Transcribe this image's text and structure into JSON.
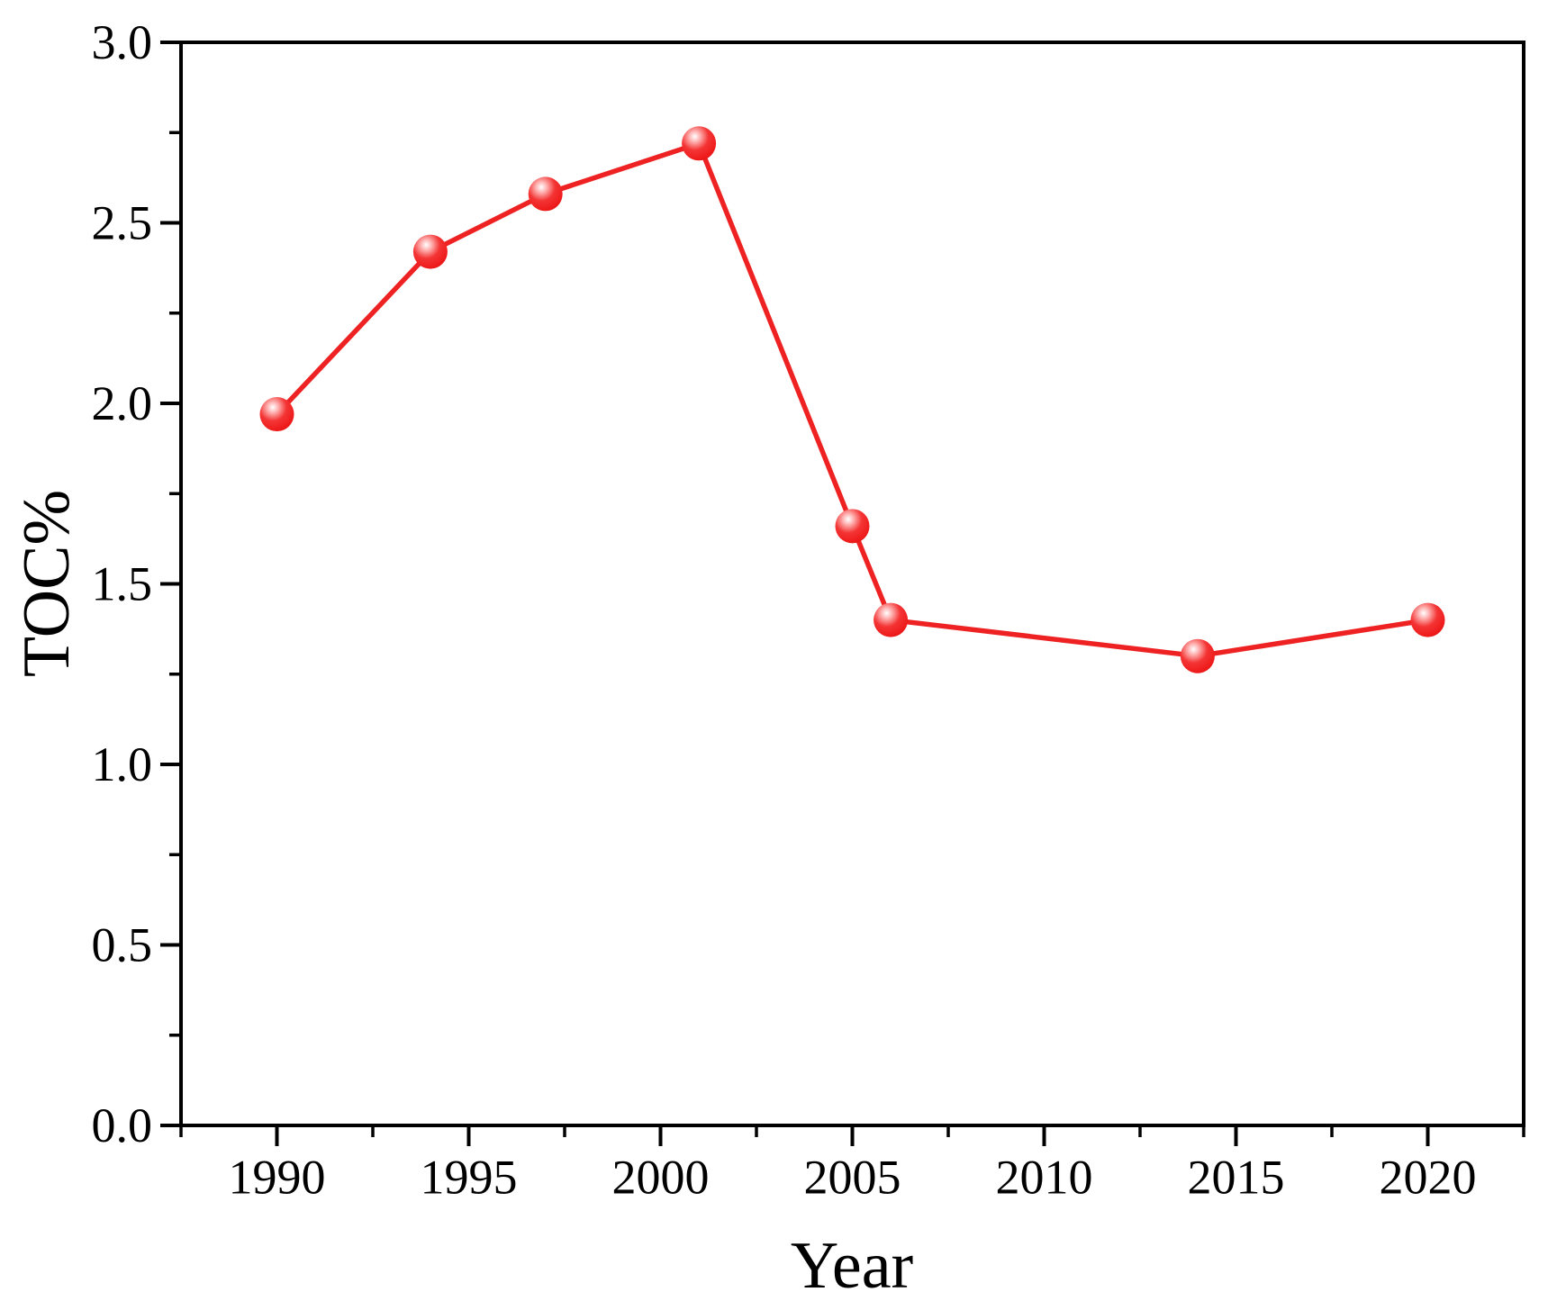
{
  "figure": {
    "background": "#ffffff",
    "axis_color": "#000000",
    "line_color": "#ee2222",
    "marker_base_color": "#ee1a1a",
    "marker_rim_color": "#d91212",
    "marker_highlight_color": "#ffffff"
  },
  "chart_data": {
    "type": "line",
    "title": "",
    "xlabel": "Year",
    "ylabel": "TOC%",
    "x": [
      1990,
      1994,
      1997,
      2001,
      2005,
      2006,
      2014,
      2020
    ],
    "y": [
      1.97,
      2.42,
      2.58,
      2.72,
      1.66,
      1.4,
      1.3,
      1.4
    ],
    "xlim": [
      1987.5,
      2022.5
    ],
    "ylim": [
      0,
      3.0
    ],
    "x_major_ticks": [
      1990,
      1995,
      2000,
      2005,
      2010,
      2015,
      2020
    ],
    "x_tick_labels": [
      "1990",
      "1995",
      "2000",
      "2005",
      "2010",
      "2015",
      "2020"
    ],
    "x_minor_step": 2.5,
    "y_major_ticks": [
      0,
      0.5,
      1.0,
      1.5,
      2.0,
      2.5,
      3.0
    ],
    "y_tick_labels": [
      "0.0",
      "0.5",
      "1.0",
      "1.5",
      "2.0",
      "2.5",
      "3.0"
    ],
    "y_minor_step": 0.25,
    "grid": false,
    "legend": "none",
    "frame": "box",
    "marker": "sphere",
    "tick_direction": "out"
  }
}
